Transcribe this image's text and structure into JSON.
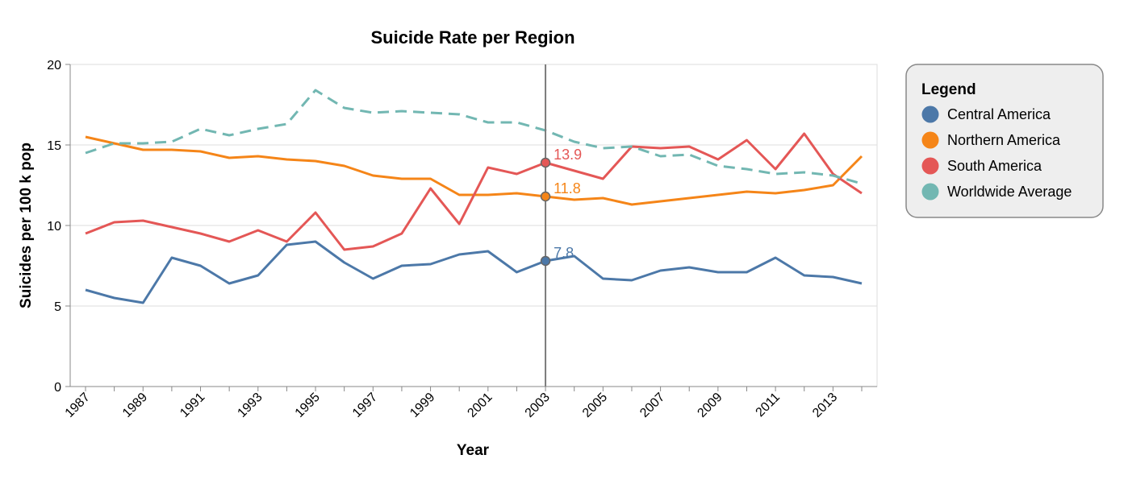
{
  "chart_data": {
    "type": "line",
    "title": "Suicide Rate per Region",
    "xlabel": "Year",
    "ylabel": "Suicides per 100 k pop",
    "x": [
      1987,
      1988,
      1989,
      1990,
      1991,
      1992,
      1993,
      1994,
      1995,
      1996,
      1997,
      1998,
      1999,
      2000,
      2001,
      2002,
      2003,
      2004,
      2005,
      2006,
      2007,
      2008,
      2009,
      2010,
      2011,
      2012,
      2013,
      2014
    ],
    "x_tick_labels": [
      "1987",
      "1989",
      "1991",
      "1993",
      "1995",
      "1997",
      "1999",
      "2001",
      "2003",
      "2005",
      "2007",
      "2009",
      "2011",
      "2013"
    ],
    "ylim": [
      0,
      20
    ],
    "y_ticks": [
      0,
      5,
      10,
      15,
      20
    ],
    "grid": true,
    "legend_title": "Legend",
    "legend_position": "right",
    "highlight": {
      "x": 2003
    },
    "series": [
      {
        "name": "Central America",
        "color": "#4c78a8",
        "dash": false,
        "values": [
          6.0,
          5.5,
          5.2,
          8.0,
          7.5,
          6.4,
          6.9,
          8.8,
          9.0,
          7.7,
          6.7,
          7.5,
          7.6,
          8.2,
          8.4,
          7.1,
          7.8,
          8.1,
          6.7,
          6.6,
          7.2,
          7.4,
          7.1,
          7.1,
          8.0,
          6.9,
          6.8,
          6.4
        ],
        "highlight_label": "7.8"
      },
      {
        "name": "Northern America",
        "color": "#f58518",
        "dash": false,
        "values": [
          15.5,
          15.1,
          14.7,
          14.7,
          14.6,
          14.2,
          14.3,
          14.1,
          14.0,
          13.7,
          13.1,
          12.9,
          12.9,
          11.9,
          11.9,
          12.0,
          11.8,
          11.6,
          11.7,
          11.3,
          11.5,
          11.7,
          11.9,
          12.1,
          12.0,
          12.2,
          12.5,
          14.3
        ],
        "highlight_label": "11.8"
      },
      {
        "name": "South America",
        "color": "#e45756",
        "dash": false,
        "values": [
          9.5,
          10.2,
          10.3,
          9.9,
          9.5,
          9.0,
          9.7,
          9.0,
          10.8,
          8.5,
          8.7,
          9.5,
          12.3,
          10.1,
          13.6,
          13.2,
          13.9,
          13.4,
          12.9,
          14.9,
          14.8,
          14.9,
          14.1,
          15.3,
          13.5,
          15.7,
          13.2,
          12.0
        ],
        "highlight_label": "13.9"
      },
      {
        "name": "Worldwide Average",
        "color": "#72b7b2",
        "dash": true,
        "values": [
          14.5,
          15.1,
          15.1,
          15.2,
          16.0,
          15.6,
          16.0,
          16.3,
          18.4,
          17.3,
          17.0,
          17.1,
          17.0,
          16.9,
          16.4,
          16.4,
          15.9,
          15.2,
          14.8,
          14.9,
          14.3,
          14.4,
          13.7,
          13.5,
          13.2,
          13.3,
          13.1,
          12.6
        ]
      }
    ]
  }
}
